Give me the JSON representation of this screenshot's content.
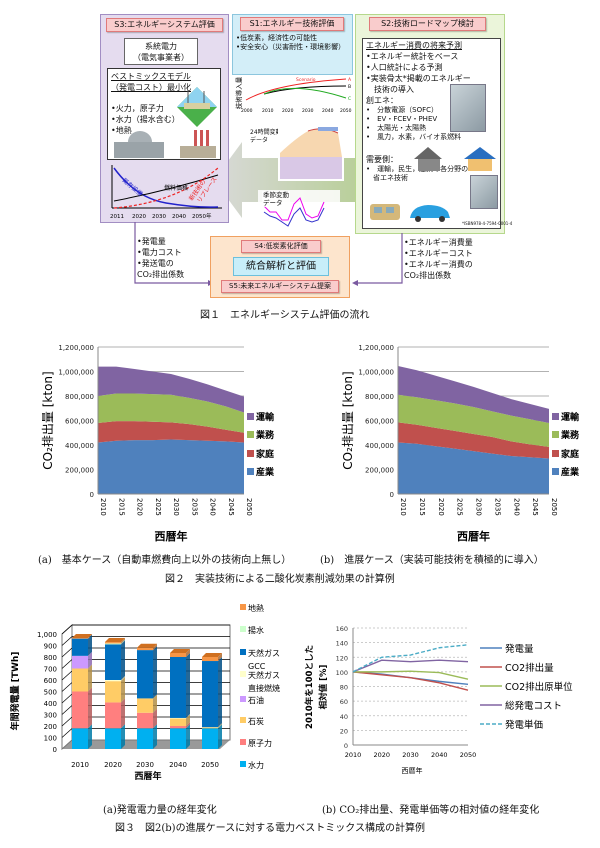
{
  "fig1": {
    "s3": {
      "title": "S3:エネルギーシステム評価",
      "grid_box": [
        "系統電力",
        "（電気事業者）"
      ],
      "model_title": [
        "ベストミックスモデル",
        "（発電コスト）最小化"
      ],
      "bullets": [
        "•火力，原子力",
        "•水力（揚水含む）",
        "•地熱"
      ],
      "graph": {
        "existing": "既存設備",
        "fuel": "燃料価格",
        "replace": [
          "新技術の",
          "リプレース"
        ],
        "years": [
          "2011",
          "2020",
          "2030",
          "2040",
          "2050年"
        ]
      }
    },
    "s1": {
      "title": "S1:エネルギー技術評価",
      "bullets": [
        "•低炭素，経済性の可能性",
        "•安全安心（災害耐性・環境影響）"
      ],
      "ylabel": "技術導入量",
      "scenario": "Scenario",
      "letters": [
        "A",
        "B",
        "C"
      ],
      "years": [
        "2000",
        "2010",
        "2020",
        "2030",
        "2040",
        "2050"
      ],
      "daily": [
        "24時間変動",
        "データ"
      ],
      "seasonal": [
        "季節変動",
        "データ"
      ]
    },
    "s2": {
      "title": "S2:技術ロードマップ検討",
      "heading": "エネルギー消費の将来予測",
      "bullets": [
        "•エネルギー統計をベース",
        "•人口統計による予測",
        "•実装骨太*掲載のエネルギー",
        "　技術の導入"
      ],
      "create": "創エネ：",
      "create_items": [
        "•　分散電源（SOFC）",
        "•　EV・FCEV・PHEV",
        "•　太陽光・太陽熱",
        "•　風力，水素，バイオ系燃料"
      ],
      "demand": "需要側：",
      "demand_items": [
        "•　運輸，民生，産業の各分野の",
        "　省エネ技術"
      ],
      "isbn": "*ISBN978-4-7594-0001-4"
    },
    "s4": {
      "title": "S4:低炭素化評価",
      "center": "統合解析と評価",
      "s5": "S5:未来エネルギーシステム提案"
    },
    "left_outputs": [
      "•発電量",
      "•電力コスト",
      "•発送電の",
      "CO₂排出係数"
    ],
    "right_outputs": [
      "•エネルギー消費量",
      "•エネルギーコスト",
      "•エネルギー消費の",
      "CO₂排出係数"
    ],
    "caption": "図１　エネルギーシステム評価の流れ"
  },
  "fig2": {
    "caption_a": "(a)　基本ケース（自動車燃費向上以外の技術向上無し）",
    "caption_b": "(b)　進展ケース（実装可能技術を積極的に導入）",
    "caption": "図２　実装技術による二酸化炭素削減効果の計算例"
  },
  "fig3": {
    "caption_a": "(a)発電電力量の経年変化",
    "caption_b": "(b) CO₂排出量、発電単価等の相対値の経年変化",
    "caption": "図３　図2(b)の進展ケースに対する電力ベストミックス構成の計算例"
  },
  "chart_data": [
    {
      "id": "fig2a",
      "type": "area",
      "stacked": true,
      "x": [
        2010,
        2015,
        2020,
        2025,
        2030,
        2035,
        2040,
        2045,
        2050
      ],
      "ylabel": "CO₂排出量 [kton]",
      "xlabel": "西暦年",
      "ylim": [
        0,
        1200000
      ],
      "yticks": [
        "0",
        "200,000",
        "400,000",
        "600,000",
        "800,000",
        "1,000,000",
        "1,200,000"
      ],
      "grid": true,
      "legend": "right",
      "series": [
        {
          "name": "産業",
          "color": "#4f81bd",
          "values": [
            420000,
            435000,
            440000,
            440000,
            445000,
            440000,
            435000,
            430000,
            420000
          ]
        },
        {
          "name": "家庭",
          "color": "#c0504d",
          "values": [
            160000,
            160000,
            155000,
            150000,
            140000,
            130000,
            115000,
            95000,
            80000
          ]
        },
        {
          "name": "業務",
          "color": "#9bbb59",
          "values": [
            220000,
            225000,
            225000,
            225000,
            225000,
            215000,
            205000,
            190000,
            165000
          ]
        },
        {
          "name": "運輸",
          "color": "#8064a2",
          "values": [
            240000,
            220000,
            200000,
            185000,
            170000,
            155000,
            140000,
            130000,
            130000
          ]
        }
      ]
    },
    {
      "id": "fig2b",
      "type": "area",
      "stacked": true,
      "x": [
        2010,
        2015,
        2020,
        2025,
        2030,
        2035,
        2040,
        2045,
        2050
      ],
      "ylabel": "CO₂排出量 [kton]",
      "xlabel": "西暦年",
      "ylim": [
        0,
        1200000
      ],
      "yticks": [
        "0",
        "200,000",
        "400,000",
        "600,000",
        "800,000",
        "1,000,000",
        "1,200,000"
      ],
      "grid": true,
      "legend": "right",
      "series": [
        {
          "name": "産業",
          "color": "#4f81bd",
          "values": [
            420000,
            410000,
            390000,
            370000,
            350000,
            330000,
            310000,
            300000,
            290000
          ]
        },
        {
          "name": "家庭",
          "color": "#c0504d",
          "values": [
            165000,
            155000,
            150000,
            145000,
            140000,
            135000,
            120000,
            105000,
            95000
          ]
        },
        {
          "name": "業務",
          "color": "#9bbb59",
          "values": [
            225000,
            225000,
            225000,
            225000,
            220000,
            210000,
            210000,
            205000,
            195000
          ]
        },
        {
          "name": "運輸",
          "color": "#8064a2",
          "values": [
            235000,
            220000,
            200000,
            180000,
            165000,
            150000,
            135000,
            125000,
            115000
          ]
        }
      ]
    },
    {
      "id": "fig3a",
      "type": "bar",
      "stacked": true,
      "categories": [
        "2010",
        "2020",
        "2030",
        "2040",
        "2050"
      ],
      "ylabel": "年間発電量 [TWh]",
      "xlabel": "西暦年",
      "ylim": [
        0,
        1000
      ],
      "yticks": [
        "0",
        "100",
        "200",
        "300",
        "400",
        "500",
        "600",
        "700",
        "800",
        "900",
        "1,000"
      ],
      "legend": "right",
      "series": [
        {
          "name": "水力",
          "color": "#00b0f0",
          "values": [
            180,
            180,
            180,
            180,
            180
          ]
        },
        {
          "name": "原子力",
          "color": "#ff7f7f",
          "values": [
            320,
            225,
            135,
            20,
            0
          ]
        },
        {
          "name": "石炭",
          "color": "#ffcc66",
          "values": [
            200,
            185,
            125,
            65,
            8
          ]
        },
        {
          "name": "石油",
          "color": "#cc99ff",
          "values": [
            110,
            0,
            0,
            0,
            0
          ]
        },
        {
          "name": "天然ガス直接燃焼",
          "color": "#ffffcc",
          "values": [
            0,
            10,
            0,
            5,
            2
          ]
        },
        {
          "name": "天然ガスGCC",
          "color": "#0070c0",
          "values": [
            150,
            310,
            420,
            530,
            575
          ]
        },
        {
          "name": "揚水",
          "color": "#ccffcc",
          "values": [
            0,
            8,
            0,
            0,
            0
          ]
        },
        {
          "name": "地熱",
          "color": "#f79646",
          "values": [
            5,
            12,
            20,
            35,
            35
          ]
        }
      ],
      "legend_labels": [
        "地熱",
        "揚水",
        "天然ガス",
        "GCC",
        "天然ガス",
        "直接燃焼",
        "石油",
        "石炭",
        "原子力",
        "水力"
      ]
    },
    {
      "id": "fig3b",
      "type": "line",
      "x": [
        2010,
        2020,
        2030,
        2040,
        2050
      ],
      "ylabel": [
        "2010年を100とした",
        "相対値 [%]"
      ],
      "xlabel": "西暦年",
      "ylim": [
        0,
        160
      ],
      "yticks": [
        "0",
        "20",
        "40",
        "60",
        "80",
        "100",
        "120",
        "140",
        "160"
      ],
      "grid": true,
      "legend": "right",
      "series": [
        {
          "name": "発電量",
          "color": "#4f81bd",
          "dash": false,
          "values": [
            100,
            97,
            92,
            87,
            83
          ]
        },
        {
          "name": "CO2排出量",
          "color": "#c0504d",
          "dash": false,
          "values": [
            100,
            96,
            92,
            85,
            75
          ]
        },
        {
          "name": "CO2排出原単位",
          "color": "#9bbb59",
          "dash": false,
          "values": [
            100,
            100,
            101,
            99,
            90
          ]
        },
        {
          "name": "総発電コスト",
          "color": "#8064a2",
          "dash": false,
          "values": [
            100,
            116,
            114,
            116,
            114
          ]
        },
        {
          "name": "発電単価",
          "color": "#4bacc6",
          "dash": true,
          "values": [
            100,
            120,
            123,
            133,
            137
          ]
        }
      ]
    }
  ]
}
